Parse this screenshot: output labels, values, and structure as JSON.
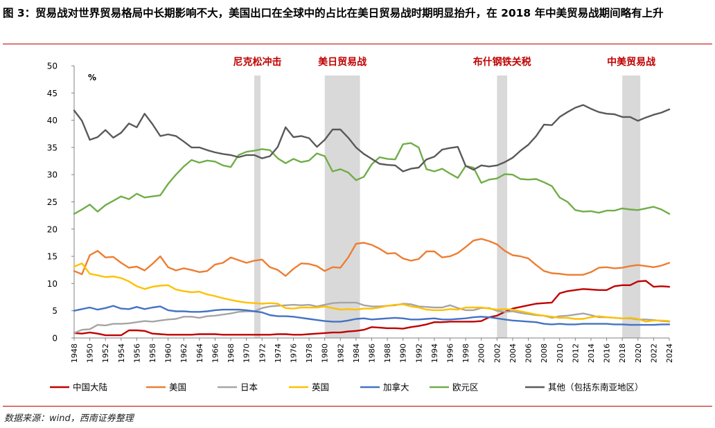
{
  "figure": {
    "title": "图 3：贸易战对世界贸易格局中长期影响不大，美国出口在全球中的占比在美日贸易战时期明显抬升，在 2018 年中美贸易战期间略有上升",
    "source": "数据来源：wind，西南证券整理"
  },
  "colors": {
    "china": "#c00000",
    "usa": "#ed7d31",
    "japan": "#a5a5a5",
    "uk": "#ffc000",
    "canada": "#4472c4",
    "euro": "#70ad47",
    "other": "#595959",
    "shade": "#d9d9d9",
    "event_label": "#c00000",
    "rule": "#c00000"
  },
  "chart_data": {
    "type": "line",
    "unit_label": "%",
    "ylim": [
      0,
      50
    ],
    "yticks": [
      0,
      5,
      10,
      15,
      20,
      25,
      30,
      35,
      40,
      45,
      50
    ],
    "xlim": [
      1948,
      2024
    ],
    "xticks": [
      1948,
      1950,
      1952,
      1954,
      1956,
      1958,
      1960,
      1962,
      1964,
      1966,
      1968,
      1970,
      1972,
      1974,
      1976,
      1978,
      1980,
      1982,
      1984,
      1986,
      1988,
      1990,
      1992,
      1994,
      1996,
      1998,
      2000,
      2002,
      2004,
      2006,
      2008,
      2010,
      2012,
      2014,
      2016,
      2018,
      2020,
      2022,
      2024
    ],
    "grid": false,
    "legend_position": "bottom",
    "events": [
      {
        "label": "尼克松冲击",
        "start": 1971,
        "end": 1971.8
      },
      {
        "label": "美日贸易战",
        "start": 1980,
        "end": 1984.5
      },
      {
        "label": "布什钢铁关税",
        "start": 2002,
        "end": 2003.3
      },
      {
        "label": "中美贸易战",
        "start": 2018,
        "end": 2020.3
      }
    ],
    "x": [
      1948,
      1949,
      1950,
      1951,
      1952,
      1953,
      1954,
      1955,
      1956,
      1957,
      1958,
      1959,
      1960,
      1961,
      1962,
      1963,
      1964,
      1965,
      1966,
      1967,
      1968,
      1969,
      1970,
      1971,
      1972,
      1973,
      1974,
      1975,
      1976,
      1977,
      1978,
      1979,
      1980,
      1981,
      1982,
      1983,
      1984,
      1985,
      1986,
      1987,
      1988,
      1989,
      1990,
      1991,
      1992,
      1993,
      1994,
      1995,
      1996,
      1997,
      1998,
      1999,
      2000,
      2001,
      2002,
      2003,
      2004,
      2005,
      2006,
      2007,
      2008,
      2009,
      2010,
      2011,
      2012,
      2013,
      2014,
      2015,
      2016,
      2017,
      2018,
      2019,
      2020,
      2021,
      2022,
      2023,
      2024
    ],
    "series": [
      {
        "key": "china",
        "name": "中国大陆",
        "values": [
          0.9,
          0.8,
          1.0,
          0.8,
          0.5,
          0.5,
          0.5,
          1.4,
          1.4,
          1.3,
          0.8,
          0.7,
          0.6,
          0.6,
          0.6,
          0.6,
          0.7,
          0.7,
          0.7,
          0.6,
          0.6,
          0.6,
          0.6,
          0.6,
          0.6,
          0.6,
          0.7,
          0.7,
          0.6,
          0.6,
          0.7,
          0.8,
          0.9,
          1.0,
          1.0,
          1.2,
          1.3,
          1.5,
          2.0,
          1.9,
          1.8,
          1.8,
          1.7,
          2.0,
          2.2,
          2.5,
          2.9,
          2.9,
          3.0,
          3.0,
          3.0,
          3.0,
          3.1,
          3.8,
          4.1,
          4.8,
          5.4,
          5.7,
          6.0,
          6.3,
          6.4,
          6.5,
          8.2,
          8.6,
          8.8,
          9.0,
          8.9,
          8.8,
          8.8,
          9.5,
          9.7,
          9.7,
          10.4,
          10.5,
          9.4,
          9.5,
          9.4
        ]
      },
      {
        "key": "usa",
        "name": "美国",
        "values": [
          12.3,
          11.7,
          15.2,
          16.0,
          14.8,
          14.9,
          13.8,
          12.9,
          13.1,
          12.4,
          13.6,
          15.0,
          13.0,
          12.4,
          12.8,
          12.5,
          12.1,
          12.3,
          13.5,
          13.8,
          14.8,
          14.3,
          13.8,
          14.2,
          14.4,
          13.0,
          12.5,
          11.4,
          12.7,
          13.7,
          13.6,
          13.2,
          12.3,
          13.0,
          12.9,
          14.8,
          17.3,
          17.5,
          17.1,
          16.4,
          15.5,
          15.6,
          14.6,
          14.2,
          14.5,
          15.9,
          15.9,
          14.8,
          15.0,
          15.6,
          16.7,
          17.9,
          18.2,
          17.8,
          17.2,
          16.0,
          15.2,
          15.0,
          14.6,
          13.4,
          12.3,
          11.9,
          11.8,
          11.6,
          11.6,
          11.6,
          12.1,
          12.9,
          13.0,
          12.8,
          12.9,
          13.2,
          13.4,
          13.2,
          13.0,
          13.3,
          13.8
        ]
      },
      {
        "key": "japan",
        "name": "日本",
        "values": [
          0.9,
          1.5,
          1.6,
          2.4,
          2.3,
          2.6,
          2.6,
          2.7,
          2.9,
          3.1,
          3.0,
          3.2,
          3.4,
          3.5,
          3.9,
          3.9,
          3.7,
          4.0,
          4.1,
          4.3,
          4.5,
          4.8,
          4.9,
          4.9,
          5.5,
          5.8,
          5.9,
          6.0,
          6.1,
          6.0,
          6.1,
          5.8,
          6.1,
          6.4,
          6.5,
          6.5,
          6.5,
          6.0,
          5.8,
          5.8,
          5.9,
          6.0,
          6.3,
          6.2,
          5.8,
          5.7,
          5.6,
          5.6,
          6.0,
          5.5,
          5.1,
          5.1,
          5.5,
          5.5,
          5.0,
          4.8,
          4.9,
          4.6,
          4.4,
          4.2,
          4.1,
          3.7,
          4.0,
          4.1,
          4.3,
          4.5,
          4.2,
          3.8,
          3.8,
          3.7,
          3.6,
          3.6,
          3.4,
          3.4,
          3.3,
          3.1,
          3.0
        ]
      },
      {
        "key": "uk",
        "name": "英国",
        "values": [
          13.1,
          13.7,
          11.8,
          11.5,
          11.2,
          11.3,
          11.0,
          10.4,
          9.5,
          9.0,
          9.4,
          9.6,
          9.7,
          8.9,
          8.6,
          8.4,
          8.5,
          8.0,
          7.7,
          7.3,
          7.0,
          6.7,
          6.5,
          6.4,
          6.3,
          6.4,
          6.3,
          5.5,
          5.4,
          5.6,
          5.6,
          5.6,
          5.8,
          5.5,
          5.2,
          5.3,
          5.2,
          5.4,
          5.4,
          5.6,
          5.9,
          6.1,
          6.2,
          5.8,
          5.6,
          5.2,
          5.1,
          5.1,
          5.3,
          5.2,
          5.6,
          5.6,
          5.6,
          5.4,
          5.2,
          5.3,
          5.2,
          4.9,
          4.6,
          4.3,
          4.1,
          3.9,
          3.7,
          3.7,
          3.5,
          3.5,
          3.8,
          4.0,
          3.8,
          3.7,
          3.6,
          3.7,
          3.5,
          3.0,
          3.2,
          3.2,
          3.1
        ]
      },
      {
        "key": "canada",
        "name": "加拿大",
        "values": [
          5.0,
          5.3,
          5.6,
          5.2,
          5.5,
          5.9,
          5.4,
          5.3,
          5.7,
          5.3,
          5.6,
          5.8,
          5.1,
          4.9,
          4.9,
          4.8,
          4.8,
          4.9,
          5.1,
          5.2,
          5.2,
          5.2,
          5.1,
          4.9,
          4.7,
          4.2,
          4.0,
          4.0,
          3.9,
          3.7,
          3.5,
          3.3,
          3.1,
          3.0,
          3.0,
          3.2,
          3.5,
          3.6,
          3.4,
          3.5,
          3.6,
          3.7,
          3.6,
          3.4,
          3.4,
          3.5,
          3.6,
          3.4,
          3.4,
          3.5,
          3.6,
          3.8,
          3.9,
          3.8,
          3.6,
          3.4,
          3.2,
          3.1,
          3.0,
          2.9,
          2.6,
          2.5,
          2.6,
          2.5,
          2.5,
          2.6,
          2.6,
          2.6,
          2.6,
          2.5,
          2.5,
          2.4,
          2.4,
          2.4,
          2.4,
          2.5,
          2.5
        ]
      },
      {
        "key": "euro",
        "name": "欧元区",
        "values": [
          22.8,
          23.6,
          24.5,
          23.2,
          24.4,
          25.2,
          26.0,
          25.5,
          26.5,
          25.8,
          26.0,
          26.2,
          28.3,
          30.0,
          31.5,
          32.7,
          32.2,
          32.6,
          32.4,
          31.7,
          31.4,
          33.6,
          34.2,
          34.4,
          34.7,
          34.5,
          33.0,
          32.1,
          32.9,
          32.3,
          32.6,
          33.9,
          33.4,
          30.6,
          31.0,
          30.4,
          29.0,
          29.6,
          31.9,
          33.2,
          32.9,
          32.8,
          35.6,
          35.8,
          35.0,
          31.0,
          30.6,
          31.1,
          30.2,
          29.4,
          31.6,
          31.3,
          28.5,
          29.1,
          29.3,
          30.1,
          30.0,
          29.2,
          29.1,
          29.2,
          28.6,
          27.9,
          25.8,
          25.0,
          23.5,
          23.2,
          23.3,
          23.0,
          23.4,
          23.4,
          23.8,
          23.6,
          23.5,
          23.8,
          24.1,
          23.6,
          22.8
        ]
      },
      {
        "key": "other",
        "name": "其他（包括东南亚地区）",
        "values": [
          41.8,
          39.9,
          36.4,
          36.9,
          38.2,
          36.8,
          37.7,
          39.4,
          38.7,
          41.2,
          39.3,
          37.1,
          37.4,
          37.1,
          36.1,
          35.0,
          35.0,
          34.5,
          34.1,
          33.8,
          33.6,
          33.2,
          33.6,
          33.6,
          33.0,
          33.4,
          35.1,
          38.7,
          36.9,
          37.1,
          36.7,
          35.1,
          36.4,
          38.3,
          38.3,
          36.8,
          35.0,
          33.8,
          32.9,
          32.0,
          31.8,
          31.7,
          30.6,
          31.1,
          31.3,
          32.8,
          33.3,
          34.6,
          34.9,
          35.1,
          31.6,
          30.9,
          31.7,
          31.5,
          31.7,
          32.3,
          33.1,
          34.4,
          35.5,
          37.1,
          39.2,
          39.1,
          40.6,
          41.5,
          42.3,
          42.8,
          42.1,
          41.5,
          41.2,
          41.1,
          40.6,
          40.6,
          39.9,
          40.5,
          41.0,
          41.4,
          42.0
        ]
      }
    ]
  }
}
